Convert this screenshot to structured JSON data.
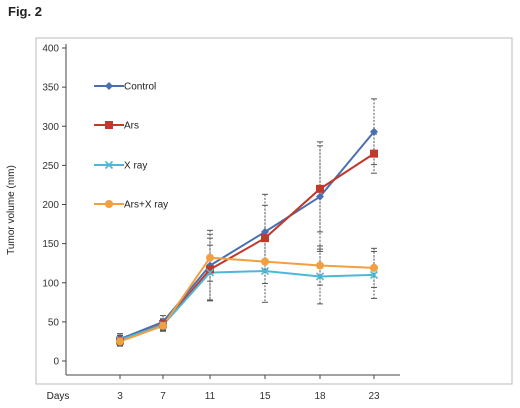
{
  "figure_label": "Fig. 2",
  "chart_data": {
    "type": "line",
    "xlabel": "Days",
    "ylabel": "Tumor volume (mm)",
    "x": [
      3,
      7,
      11,
      15,
      18,
      23
    ],
    "x_tick_labels": [
      "3",
      "7",
      "11",
      "15",
      "18",
      "23"
    ],
    "ylim": [
      0,
      400
    ],
    "y_ticks": [
      0,
      50,
      100,
      150,
      200,
      250,
      300,
      350,
      400
    ],
    "grid": false,
    "legend_position": "top-left",
    "series": [
      {
        "name": "Control",
        "color": "#4a6fb0",
        "marker": "diamond",
        "values": [
          28,
          50,
          122,
          165,
          210,
          293
        ],
        "errors": [
          7,
          8,
          45,
          48,
          70,
          42
        ]
      },
      {
        "name": "Ars",
        "color": "#c0392b",
        "marker": "square",
        "values": [
          26,
          47,
          117,
          157,
          220,
          265
        ],
        "errors": [
          6,
          7,
          40,
          42,
          55,
          25
        ]
      },
      {
        "name": "X ray",
        "color": "#4bb8d8",
        "marker": "x",
        "values": [
          27,
          46,
          113,
          115,
          108,
          110
        ],
        "errors": [
          6,
          7,
          35,
          40,
          35,
          30
        ]
      },
      {
        "name": "Ars+X ray",
        "color": "#f0a040",
        "marker": "circle",
        "values": [
          25,
          45,
          132,
          127,
          122,
          119
        ],
        "errors": [
          6,
          7,
          30,
          28,
          25,
          25
        ]
      }
    ]
  }
}
